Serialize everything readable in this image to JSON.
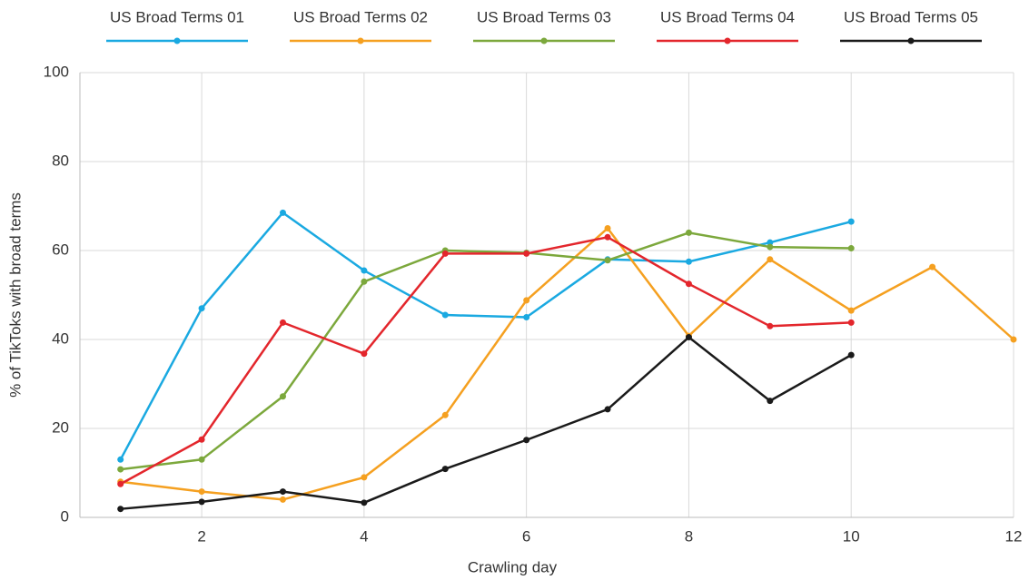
{
  "chart_data": {
    "type": "line",
    "x_label": "Crawling day",
    "y_label": "% of TikToks with broad terms",
    "x": [
      1,
      2,
      3,
      4,
      5,
      6,
      7,
      8,
      9,
      10,
      11,
      12
    ],
    "series": [
      {
        "name": "US Broad Terms 01",
        "color": "#1aa9e1",
        "values": [
          13,
          47,
          68.5,
          55.5,
          45.5,
          45,
          58,
          57.5,
          61.8,
          66.5,
          null,
          null
        ]
      },
      {
        "name": "US Broad Terms 02",
        "color": "#f5a020",
        "values": [
          8,
          5.8,
          4,
          9,
          23,
          48.8,
          65,
          40.8,
          58,
          46.5,
          56.3,
          40
        ]
      },
      {
        "name": "US Broad Terms 03",
        "color": "#7ca83c",
        "values": [
          10.8,
          13,
          27.2,
          53,
          60,
          59.5,
          57.8,
          64,
          60.8,
          60.5,
          null,
          null
        ]
      },
      {
        "name": "US Broad Terms 04",
        "color": "#e3262c",
        "values": [
          7.5,
          17.5,
          43.8,
          36.8,
          59.3,
          59.3,
          63,
          52.5,
          43,
          43.8,
          null,
          null
        ]
      },
      {
        "name": "US Broad Terms 05",
        "color": "#1a1a1a",
        "values": [
          1.9,
          3.5,
          5.8,
          3.3,
          10.9,
          17.4,
          24.3,
          40.5,
          26.2,
          36.5,
          null,
          null
        ]
      }
    ],
    "xlim": [
      0.5,
      12
    ],
    "xticks": [
      2,
      4,
      6,
      8,
      10,
      12
    ],
    "ylim": [
      0,
      100
    ],
    "yticks": [
      0,
      20,
      40,
      60,
      80,
      100
    ],
    "grid": true,
    "legend": "top"
  }
}
